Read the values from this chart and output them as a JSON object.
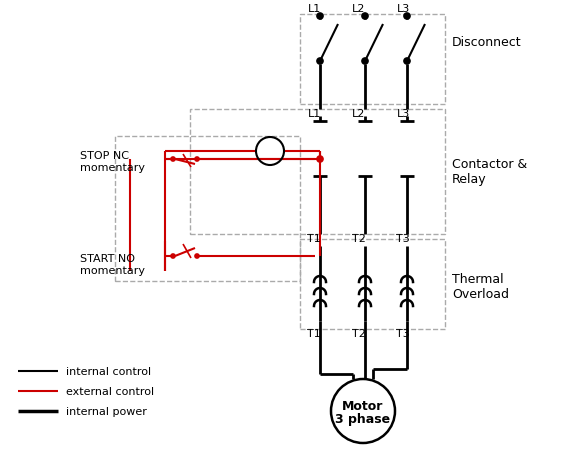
{
  "bg_color": "#ffffff",
  "line_color_black": "#000000",
  "line_color_red": "#cc0000",
  "line_color_gray": "#aaaaaa",
  "figsize": [
    5.76,
    4.77
  ],
  "dpi": 100,
  "legend_items": [
    {
      "label": "internal control",
      "color": "#000000",
      "lw": 1.5
    },
    {
      "label": "external control",
      "color": "#cc0000",
      "lw": 1.5
    },
    {
      "label": "internal power",
      "color": "#000000",
      "lw": 2.5
    }
  ],
  "labels": {
    "disconnect": "Disconnect",
    "contactor": "Contactor &\nRelay",
    "thermal": "Thermal\nOverload",
    "stop": "STOP NC\nmomentary",
    "start": "START NO\nmomentary",
    "motor": "Motor\n3 phase",
    "L1": "L1",
    "L2": "L2",
    "L3": "L3",
    "T1a": "T1",
    "T2a": "T2",
    "T3a": "T3",
    "T1b": "T1",
    "T2b": "T2",
    "T3b": "T3"
  }
}
